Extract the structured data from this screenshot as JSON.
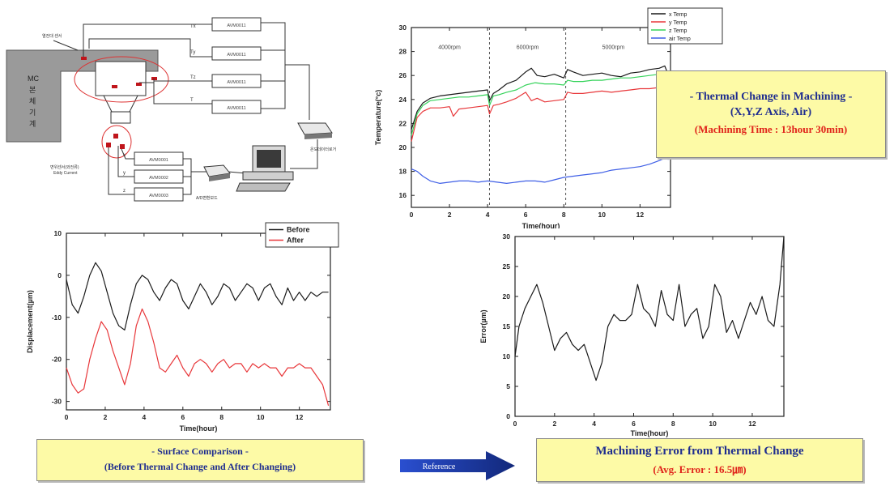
{
  "diagram": {
    "mc_label": "MC\n본\n체\n기\n계",
    "module_label": "AVM0011",
    "channel_labels": [
      "Tx",
      "Ty",
      "Tz",
      "T"
    ],
    "sensor_labels": [
      "x",
      "y",
      "z"
    ],
    "amp_labels": [
      "AVM0001",
      "AVM0002",
      "AVM0003"
    ],
    "left_note_top": "열전대 센서",
    "left_note_bottom": "변위센서(와전류)\nEddy Current",
    "device_note_right": "온도데이터로거",
    "device_note_bottom": "A/D변환보드"
  },
  "captions": {
    "thermal_title": "- Thermal Change in Machining -",
    "thermal_sub": "(X,Y,Z Axis,  Air)",
    "thermal_time": "(Machining Time : 13hour 30min)",
    "surface_title": "- Surface Comparison  -",
    "surface_sub": "(Before Thermal Change and After Changing)",
    "error_title": "Machining Error from Thermal Change",
    "error_avg": "(Avg. Error : 16.5㎛)",
    "arrow_label": "Reference"
  },
  "colors": {
    "x_temp": "#1a1a1a",
    "y_temp": "#e8373a",
    "z_temp": "#35d35a",
    "air_temp": "#3f5fe6",
    "before": "#1a1a1a",
    "after": "#e8373a",
    "error": "#1a1a1a",
    "caption_bg": "#fdfaa6",
    "caption_blue": "#1f2d8f",
    "caption_red": "#e0241b",
    "arrow_blue": "#1f3fb0"
  },
  "chart_data": [
    {
      "id": "temp",
      "type": "line",
      "xlabel": "Time(hour)",
      "ylabel": "Temperature(°c)",
      "xlim": [
        0,
        13.6
      ],
      "ylim": [
        15,
        30
      ],
      "xticks": [
        0,
        2,
        4,
        6,
        8,
        10,
        12
      ],
      "yticks": [
        16,
        18,
        20,
        22,
        24,
        26,
        28,
        30
      ],
      "grid": false,
      "legend": "top-right",
      "phase_lines": [
        4.1,
        8.1
      ],
      "phase_labels": [
        {
          "x": 2.0,
          "y": 28.2,
          "text": "4000rpm"
        },
        {
          "x": 6.1,
          "y": 28.2,
          "text": "6000rpm"
        },
        {
          "x": 10.6,
          "y": 28.2,
          "text": "5000rpm"
        }
      ],
      "series": [
        {
          "name": "x Temp",
          "color": "#1a1a1a",
          "x": [
            0,
            0.3,
            0.6,
            1,
            1.5,
            2,
            2.5,
            3,
            3.5,
            4,
            4.1,
            4.3,
            4.6,
            5,
            5.5,
            6,
            6.3,
            6.6,
            7,
            7.5,
            8,
            8.2,
            8.5,
            9,
            9.5,
            10,
            10.5,
            11,
            11.5,
            12,
            12.5,
            13,
            13.3,
            13.5
          ],
          "y": [
            21.5,
            23,
            23.7,
            24.1,
            24.3,
            24.4,
            24.5,
            24.6,
            24.7,
            24.8,
            23.9,
            24.5,
            24.8,
            25.3,
            25.6,
            26.3,
            26.6,
            26,
            25.9,
            26.1,
            25.8,
            26.5,
            26.3,
            26,
            26.1,
            26.2,
            26,
            25.9,
            26.2,
            26.3,
            26.5,
            26.6,
            26.8,
            26
          ]
        },
        {
          "name": "y Temp",
          "color": "#e8373a",
          "x": [
            0,
            0.3,
            0.6,
            1,
            1.5,
            2,
            2.2,
            2.5,
            3,
            3.5,
            4,
            4.1,
            4.3,
            4.6,
            5,
            5.5,
            6,
            6.3,
            6.6,
            7,
            7.5,
            8,
            8.2,
            8.5,
            9,
            9.5,
            10,
            10.5,
            11,
            11.5,
            12,
            12.5,
            13,
            13.3,
            13.5
          ],
          "y": [
            20.5,
            22.5,
            23,
            23.3,
            23.3,
            23.4,
            22.6,
            23.2,
            23.3,
            23.4,
            23.5,
            22.8,
            23.5,
            23.6,
            23.8,
            24.1,
            24.6,
            23.9,
            24.1,
            23.8,
            23.9,
            24,
            24.6,
            24.5,
            24.5,
            24.6,
            24.7,
            24.6,
            24.7,
            24.8,
            24.9,
            24.9,
            25,
            25.1,
            25.2
          ]
        },
        {
          "name": "z Temp",
          "color": "#35d35a",
          "x": [
            0,
            0.3,
            0.6,
            1,
            1.5,
            2,
            2.5,
            3,
            3.5,
            4,
            4.1,
            4.3,
            4.6,
            5,
            5.5,
            6,
            6.5,
            7,
            7.5,
            8,
            8.2,
            8.5,
            9,
            9.5,
            10,
            10.5,
            11,
            11.5,
            12,
            12.5,
            13,
            13.3,
            13.5
          ],
          "y": [
            21,
            22.8,
            23.5,
            23.9,
            24,
            24.1,
            24.2,
            24.2,
            24.3,
            24.4,
            23.5,
            24.3,
            24.4,
            24.6,
            24.8,
            25.2,
            25.4,
            25.3,
            25.3,
            25.2,
            25.6,
            25.5,
            25.5,
            25.6,
            25.6,
            25.7,
            25.8,
            25.8,
            25.9,
            26,
            26.1,
            26.2,
            25.6
          ]
        },
        {
          "name": "air Temp",
          "color": "#3f5fe6",
          "x": [
            0,
            0.3,
            0.6,
            1,
            1.5,
            2,
            2.5,
            3,
            3.5,
            4,
            4.5,
            5,
            5.5,
            6,
            6.5,
            7,
            7.5,
            8,
            8.5,
            9,
            9.5,
            10,
            10.5,
            11,
            11.5,
            12,
            12.5,
            13,
            13.3,
            13.5
          ],
          "y": [
            18.2,
            18,
            17.6,
            17.2,
            17,
            17.1,
            17.2,
            17.2,
            17.1,
            17.2,
            17.1,
            17,
            17.1,
            17.2,
            17.2,
            17.1,
            17.3,
            17.5,
            17.6,
            17.7,
            17.8,
            17.9,
            18.1,
            18.2,
            18.3,
            18.4,
            18.6,
            18.9,
            19.1,
            19
          ]
        }
      ]
    },
    {
      "id": "disp",
      "type": "line",
      "xlabel": "Time(hour)",
      "ylabel": "Displacement(µm)",
      "xlim": [
        0,
        13.6
      ],
      "ylim": [
        -32,
        10
      ],
      "xticks": [
        0,
        2,
        4,
        6,
        8,
        10,
        12
      ],
      "yticks": [
        -30,
        -20,
        -10,
        0,
        10
      ],
      "grid": false,
      "legend": "top-right",
      "series": [
        {
          "name": "Before",
          "color": "#1a1a1a",
          "x": [
            0,
            0.3,
            0.6,
            0.9,
            1.2,
            1.5,
            1.8,
            2.1,
            2.4,
            2.7,
            3.0,
            3.3,
            3.6,
            3.9,
            4.2,
            4.5,
            4.8,
            5.1,
            5.4,
            5.7,
            6.0,
            6.3,
            6.6,
            6.9,
            7.2,
            7.5,
            7.8,
            8.1,
            8.4,
            8.7,
            9.0,
            9.3,
            9.6,
            9.9,
            10.2,
            10.5,
            10.8,
            11.1,
            11.4,
            11.7,
            12.0,
            12.3,
            12.6,
            12.9,
            13.2,
            13.5
          ],
          "y": [
            -1,
            -7,
            -9,
            -5,
            0,
            3,
            1,
            -4,
            -9,
            -12,
            -13,
            -7,
            -2,
            0,
            -1,
            -4,
            -6,
            -3,
            -1,
            -2,
            -6,
            -8,
            -5,
            -2,
            -4,
            -7,
            -5,
            -2,
            -3,
            -6,
            -4,
            -2,
            -3,
            -6,
            -3,
            -2,
            -5,
            -7,
            -3,
            -6,
            -4,
            -6,
            -4,
            -5,
            -4,
            -4
          ]
        },
        {
          "name": "After",
          "color": "#e8373a",
          "x": [
            0,
            0.3,
            0.6,
            0.9,
            1.2,
            1.5,
            1.8,
            2.1,
            2.4,
            2.7,
            3.0,
            3.3,
            3.6,
            3.9,
            4.2,
            4.5,
            4.8,
            5.1,
            5.4,
            5.7,
            6.0,
            6.3,
            6.6,
            6.9,
            7.2,
            7.5,
            7.8,
            8.1,
            8.4,
            8.7,
            9.0,
            9.3,
            9.6,
            9.9,
            10.2,
            10.5,
            10.8,
            11.1,
            11.4,
            11.7,
            12.0,
            12.3,
            12.6,
            12.9,
            13.2,
            13.5
          ],
          "y": [
            -22,
            -26,
            -28,
            -27,
            -20,
            -15,
            -11,
            -13,
            -18,
            -22,
            -26,
            -21,
            -12,
            -8,
            -11,
            -16,
            -22,
            -23,
            -21,
            -19,
            -22,
            -24,
            -21,
            -20,
            -21,
            -23,
            -21,
            -20,
            -22,
            -21,
            -21,
            -23,
            -21,
            -22,
            -21,
            -22,
            -22,
            -24,
            -22,
            -22,
            -21,
            -22,
            -22,
            -24,
            -26,
            -31
          ]
        }
      ]
    },
    {
      "id": "err",
      "type": "line",
      "xlabel": "Time(hour)",
      "ylabel": "Error(µm)",
      "xlim": [
        0,
        13.6
      ],
      "ylim": [
        0,
        30
      ],
      "xticks": [
        0,
        2,
        4,
        6,
        8,
        10,
        12
      ],
      "yticks": [
        0,
        5,
        10,
        15,
        20,
        25,
        30
      ],
      "grid": false,
      "series": [
        {
          "name": "Error",
          "color": "#1a1a1a",
          "x": [
            0,
            0.2,
            0.5,
            0.8,
            1.1,
            1.4,
            1.7,
            2.0,
            2.3,
            2.6,
            2.9,
            3.2,
            3.5,
            3.8,
            4.1,
            4.4,
            4.7,
            5.0,
            5.3,
            5.6,
            5.9,
            6.2,
            6.5,
            6.8,
            7.1,
            7.4,
            7.7,
            8.0,
            8.3,
            8.6,
            8.9,
            9.2,
            9.5,
            9.8,
            10.1,
            10.4,
            10.7,
            11.0,
            11.3,
            11.6,
            11.9,
            12.2,
            12.5,
            12.8,
            13.1,
            13.4,
            13.6
          ],
          "y": [
            10,
            15,
            18,
            20,
            22,
            19,
            15,
            11,
            13,
            14,
            12,
            11,
            12,
            9,
            6,
            9,
            15,
            17,
            16,
            16,
            17,
            22,
            18,
            17,
            15,
            21,
            17,
            16,
            22,
            15,
            17,
            18,
            13,
            15,
            22,
            20,
            14,
            16,
            13,
            16,
            19,
            17,
            20,
            16,
            15,
            22,
            30
          ]
        }
      ]
    }
  ]
}
